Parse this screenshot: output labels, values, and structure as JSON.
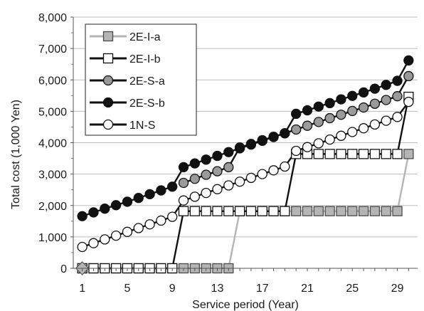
{
  "chart_data": {
    "type": "line",
    "title": "",
    "xlabel": "Service period (Year)",
    "ylabel": "Total cost (1,000 Yen)",
    "xlim": [
      0.2,
      30.8
    ],
    "ylim": [
      0,
      8000
    ],
    "x_ticks": [
      1,
      5,
      9,
      13,
      17,
      21,
      25,
      29
    ],
    "x_tick_labels": [
      "1",
      "5",
      "9",
      "13",
      "17",
      "21",
      "25",
      "29"
    ],
    "y_ticks": [
      0,
      1000,
      2000,
      3000,
      4000,
      5000,
      6000,
      7000,
      8000
    ],
    "y_tick_labels": [
      "0",
      "1,000",
      "2,000",
      "3,000",
      "4,000",
      "5,000",
      "6,000",
      "7,000",
      "8,000"
    ],
    "grid": "horizontal",
    "legend_position": "top-left",
    "series": [
      {
        "name": "2E-I-a",
        "line_color": "#b5b5b5",
        "marker": "square",
        "marker_fill": "#b5b5b5",
        "points": [
          [
            1,
            0
          ],
          [
            2,
            0
          ],
          [
            3,
            0
          ],
          [
            4,
            0
          ],
          [
            5,
            0
          ],
          [
            6,
            0
          ],
          [
            7,
            0
          ],
          [
            8,
            0
          ],
          [
            9,
            0
          ],
          [
            10,
            0
          ],
          [
            11,
            0
          ],
          [
            12,
            0
          ],
          [
            13,
            0
          ],
          [
            14,
            0
          ],
          [
            15,
            1820
          ],
          [
            16,
            1820
          ],
          [
            17,
            1820
          ],
          [
            18,
            1820
          ],
          [
            19,
            1820
          ],
          [
            20,
            1820
          ],
          [
            21,
            1820
          ],
          [
            22,
            1820
          ],
          [
            23,
            1820
          ],
          [
            24,
            1820
          ],
          [
            25,
            1820
          ],
          [
            26,
            1820
          ],
          [
            27,
            1820
          ],
          [
            28,
            1820
          ],
          [
            29,
            1820
          ],
          [
            30,
            3640
          ]
        ]
      },
      {
        "name": "2E-I-b",
        "line_color": "#111111",
        "marker": "square",
        "marker_fill": "#ffffff",
        "points": [
          [
            1,
            0
          ],
          [
            2,
            0
          ],
          [
            3,
            0
          ],
          [
            4,
            0
          ],
          [
            5,
            0
          ],
          [
            6,
            0
          ],
          [
            7,
            0
          ],
          [
            8,
            0
          ],
          [
            9,
            0
          ],
          [
            10,
            1820
          ],
          [
            11,
            1820
          ],
          [
            12,
            1820
          ],
          [
            13,
            1820
          ],
          [
            14,
            1820
          ],
          [
            15,
            1820
          ],
          [
            16,
            1820
          ],
          [
            17,
            1820
          ],
          [
            18,
            1820
          ],
          [
            19,
            1820
          ],
          [
            20,
            3640
          ],
          [
            21,
            3640
          ],
          [
            22,
            3640
          ],
          [
            23,
            3640
          ],
          [
            24,
            3640
          ],
          [
            25,
            3640
          ],
          [
            26,
            3640
          ],
          [
            27,
            3640
          ],
          [
            28,
            3640
          ],
          [
            29,
            3640
          ],
          [
            30,
            5460
          ]
        ]
      },
      {
        "name": "2E-S-a",
        "line_color": "#111111",
        "marker": "circle",
        "marker_fill": "#9a9a9a",
        "points": [
          [
            10,
            2720
          ],
          [
            11,
            2850
          ],
          [
            12,
            2980
          ],
          [
            13,
            3090
          ],
          [
            14,
            3220
          ],
          [
            15,
            3850
          ],
          [
            16,
            3960
          ],
          [
            17,
            4080
          ],
          [
            18,
            4190
          ],
          [
            19,
            4300
          ],
          [
            20,
            4420
          ],
          [
            21,
            4540
          ],
          [
            22,
            4660
          ],
          [
            23,
            4780
          ],
          [
            24,
            4890
          ],
          [
            25,
            5010
          ],
          [
            26,
            5120
          ],
          [
            27,
            5240
          ],
          [
            28,
            5360
          ],
          [
            29,
            5480
          ],
          [
            30,
            6120
          ]
        ]
      },
      {
        "name": "2E-S-b",
        "line_color": "#111111",
        "marker": "circle",
        "marker_fill": "#111111",
        "points": [
          [
            1,
            1660
          ],
          [
            2,
            1780
          ],
          [
            3,
            1900
          ],
          [
            4,
            2010
          ],
          [
            5,
            2120
          ],
          [
            6,
            2240
          ],
          [
            7,
            2360
          ],
          [
            8,
            2480
          ],
          [
            9,
            2600
          ],
          [
            10,
            3220
          ],
          [
            11,
            3340
          ],
          [
            12,
            3460
          ],
          [
            13,
            3580
          ],
          [
            14,
            3700
          ],
          [
            15,
            3820
          ],
          [
            16,
            3940
          ],
          [
            17,
            4060
          ],
          [
            18,
            4180
          ],
          [
            19,
            4300
          ],
          [
            20,
            4920
          ],
          [
            21,
            5030
          ],
          [
            22,
            5150
          ],
          [
            23,
            5260
          ],
          [
            24,
            5380
          ],
          [
            25,
            5490
          ],
          [
            26,
            5600
          ],
          [
            27,
            5720
          ],
          [
            28,
            5840
          ],
          [
            29,
            5970
          ],
          [
            30,
            6620
          ]
        ]
      },
      {
        "name": "1N-S",
        "line_color": "#111111",
        "marker": "circle",
        "marker_fill": "#ffffff",
        "points": [
          [
            1,
            680
          ],
          [
            2,
            800
          ],
          [
            3,
            920
          ],
          [
            4,
            1040
          ],
          [
            5,
            1160
          ],
          [
            6,
            1280
          ],
          [
            7,
            1400
          ],
          [
            8,
            1520
          ],
          [
            9,
            1640
          ],
          [
            10,
            2160
          ],
          [
            11,
            2280
          ],
          [
            12,
            2400
          ],
          [
            13,
            2520
          ],
          [
            14,
            2640
          ],
          [
            15,
            2760
          ],
          [
            16,
            2880
          ],
          [
            17,
            3000
          ],
          [
            18,
            3120
          ],
          [
            19,
            3240
          ],
          [
            20,
            3740
          ],
          [
            21,
            3860
          ],
          [
            22,
            3980
          ],
          [
            23,
            4100
          ],
          [
            24,
            4220
          ],
          [
            25,
            4340
          ],
          [
            26,
            4460
          ],
          [
            27,
            4580
          ],
          [
            28,
            4700
          ],
          [
            29,
            4820
          ],
          [
            30,
            5300
          ]
        ]
      }
    ]
  }
}
